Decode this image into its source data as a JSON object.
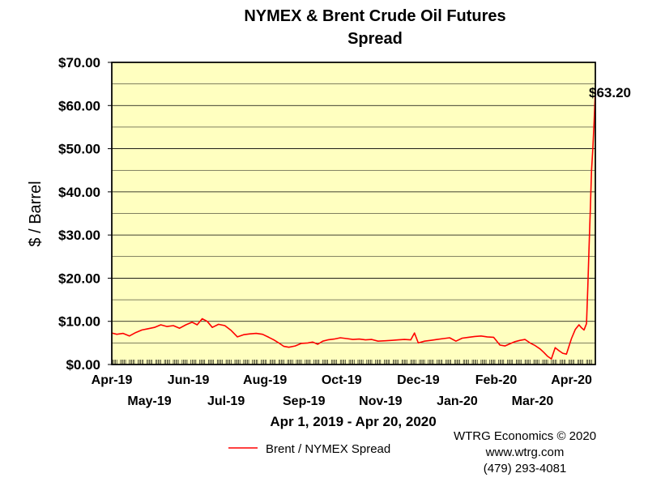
{
  "chart_data": {
    "type": "line",
    "title_lines": [
      "NYMEX & Brent Crude Oil Futures",
      "Spread"
    ],
    "ylabel": "$ / Barrel",
    "date_range_label": "Apr 1, 2019 - Apr 20, 2020",
    "ylim": [
      0,
      70
    ],
    "y_ticks": [
      "$0.00",
      "$10.00",
      "$20.00",
      "$30.00",
      "$40.00",
      "$50.00",
      "$60.00",
      "$70.00"
    ],
    "y_tick_values": [
      0,
      10,
      20,
      30,
      40,
      50,
      60,
      70
    ],
    "x_ticks_top": [
      "Apr-19",
      "Jun-19",
      "Aug-19",
      "Oct-19",
      "Dec-19",
      "Feb-20",
      "Apr-20"
    ],
    "x_ticks_top_dates": [
      "2019-04-01",
      "2019-06-01",
      "2019-08-01",
      "2019-10-01",
      "2019-12-01",
      "2020-02-01",
      "2020-04-01"
    ],
    "x_ticks_bottom": [
      "May-19",
      "Jul-19",
      "Sep-19",
      "Nov-19",
      "Jan-20",
      "Mar-20"
    ],
    "x_ticks_bottom_dates": [
      "2019-05-01",
      "2019-07-01",
      "2019-09-01",
      "2019-11-01",
      "2020-01-01",
      "2020-03-01"
    ],
    "xlim": [
      "2019-04-01",
      "2020-04-20"
    ],
    "grid": true,
    "plot_background": "#ffffc0",
    "legend_placement": "bottom-left",
    "annotations": [
      {
        "text": "$63.20",
        "x": "2020-04-20",
        "y": 63.2
      }
    ],
    "series": [
      {
        "name": "Brent / NYMEX Spread",
        "color": "#ff0000",
        "x": [
          "2019-04-01",
          "2019-04-05",
          "2019-04-10",
          "2019-04-15",
          "2019-04-20",
          "2019-04-25",
          "2019-04-30",
          "2019-05-05",
          "2019-05-10",
          "2019-05-15",
          "2019-05-20",
          "2019-05-25",
          "2019-05-30",
          "2019-06-04",
          "2019-06-08",
          "2019-06-12",
          "2019-06-16",
          "2019-06-20",
          "2019-06-25",
          "2019-06-30",
          "2019-07-05",
          "2019-07-10",
          "2019-07-15",
          "2019-07-20",
          "2019-07-25",
          "2019-07-30",
          "2019-08-04",
          "2019-08-08",
          "2019-08-12",
          "2019-08-16",
          "2019-08-20",
          "2019-08-25",
          "2019-08-30",
          "2019-09-04",
          "2019-09-08",
          "2019-09-12",
          "2019-09-16",
          "2019-09-20",
          "2019-09-25",
          "2019-09-30",
          "2019-10-05",
          "2019-10-10",
          "2019-10-15",
          "2019-10-20",
          "2019-10-25",
          "2019-10-30",
          "2019-11-05",
          "2019-11-10",
          "2019-11-15",
          "2019-11-20",
          "2019-11-25",
          "2019-11-28",
          "2019-12-01",
          "2019-12-06",
          "2019-12-11",
          "2019-12-16",
          "2019-12-21",
          "2019-12-26",
          "2019-12-31",
          "2020-01-05",
          "2020-01-10",
          "2020-01-15",
          "2020-01-20",
          "2020-01-25",
          "2020-01-30",
          "2020-02-04",
          "2020-02-08",
          "2020-02-12",
          "2020-02-16",
          "2020-02-20",
          "2020-02-24",
          "2020-02-28",
          "2020-03-03",
          "2020-03-07",
          "2020-03-10",
          "2020-03-13",
          "2020-03-16",
          "2020-03-19",
          "2020-03-22",
          "2020-03-25",
          "2020-03-28",
          "2020-04-01",
          "2020-04-04",
          "2020-04-07",
          "2020-04-09",
          "2020-04-11",
          "2020-04-13",
          "2020-04-14",
          "2020-04-15",
          "2020-04-16",
          "2020-04-17",
          "2020-04-18",
          "2020-04-19",
          "2020-04-20"
        ],
        "values": [
          7.3,
          7.0,
          7.2,
          6.6,
          7.4,
          8.0,
          8.3,
          8.6,
          9.2,
          8.8,
          9.0,
          8.4,
          9.2,
          9.8,
          9.2,
          10.6,
          10.0,
          8.6,
          9.3,
          9.0,
          7.9,
          6.4,
          6.9,
          7.1,
          7.2,
          7.0,
          6.3,
          5.7,
          5.0,
          4.2,
          4.0,
          4.3,
          4.9,
          5.0,
          5.2,
          4.7,
          5.4,
          5.7,
          5.9,
          6.2,
          6.0,
          5.8,
          5.9,
          5.7,
          5.8,
          5.4,
          5.5,
          5.6,
          5.7,
          5.8,
          5.7,
          7.3,
          5.0,
          5.4,
          5.6,
          5.8,
          6.0,
          6.2,
          5.4,
          6.1,
          6.3,
          6.5,
          6.6,
          6.4,
          6.3,
          4.5,
          4.3,
          4.8,
          5.3,
          5.6,
          5.8,
          5.0,
          4.4,
          3.6,
          2.8,
          1.9,
          1.3,
          3.9,
          3.2,
          2.6,
          2.4,
          6.0,
          8.1,
          9.2,
          8.5,
          8.0,
          9.5,
          18.0,
          27.0,
          36.0,
          45.0,
          50.0,
          56.0,
          63.2
        ]
      }
    ]
  },
  "footer": {
    "line1": "WTRG Economics © 2020",
    "line2": "www.wtrg.com",
    "line3": "(479) 293-4081"
  }
}
